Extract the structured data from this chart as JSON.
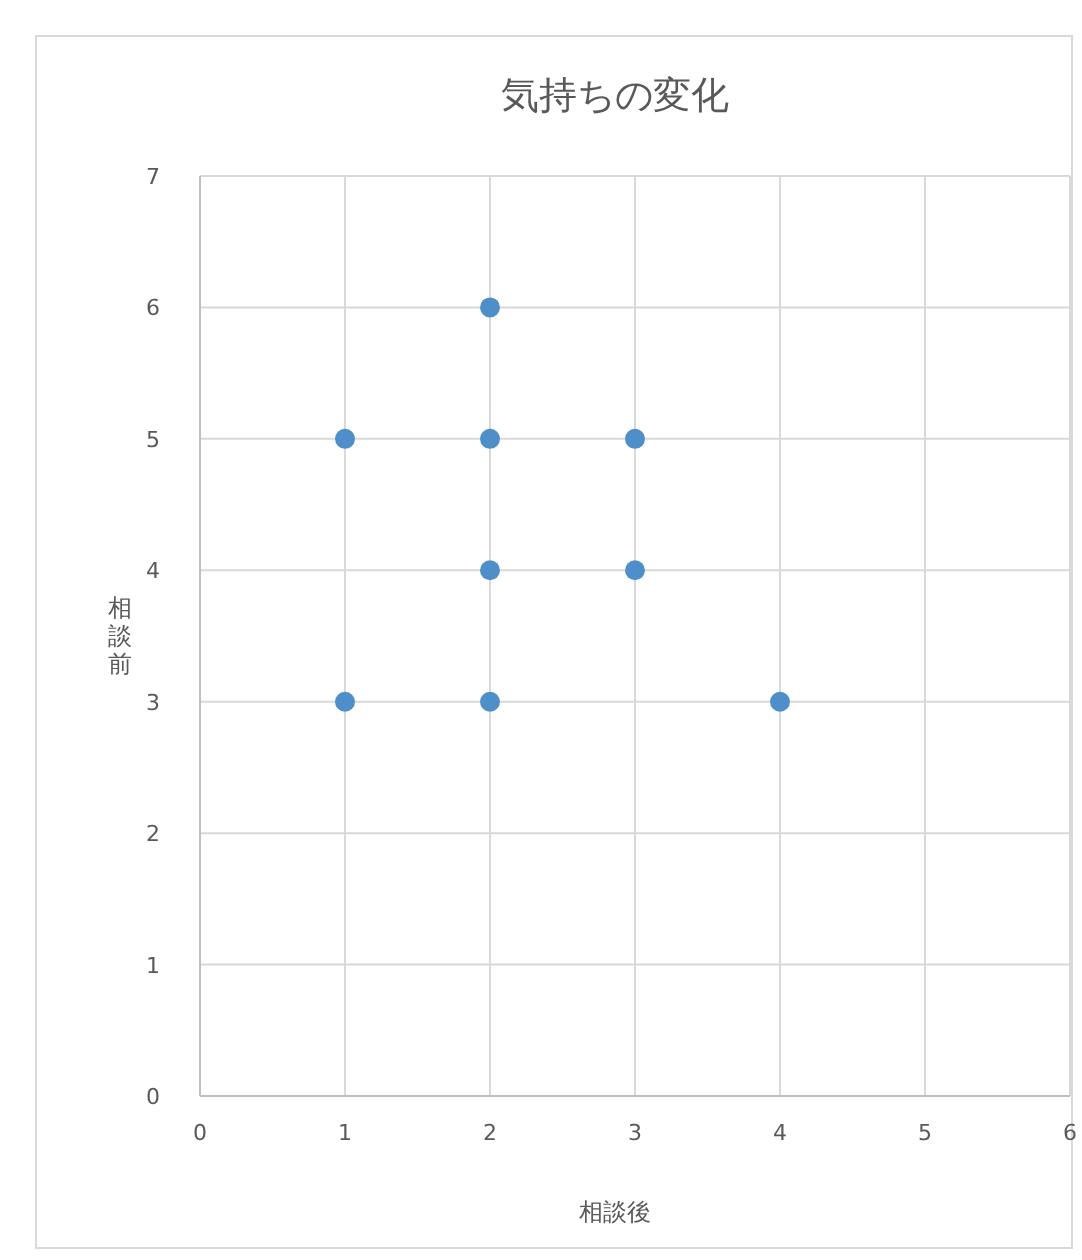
{
  "chart_data": {
    "type": "scatter",
    "title": "気持ちの変化",
    "xlabel": "相談後",
    "ylabel": "相談前",
    "x": [
      1,
      1,
      2,
      2,
      2,
      2,
      3,
      3,
      4
    ],
    "values": [
      5,
      3,
      6,
      5,
      4,
      3,
      5,
      4,
      3
    ],
    "color": "#4f8fc9",
    "xlim": [
      0,
      6
    ],
    "ylim": [
      0,
      7
    ],
    "xticks": [
      0,
      1,
      2,
      3,
      4,
      5,
      6
    ],
    "yticks": [
      0,
      1,
      2,
      3,
      4,
      5,
      6,
      7
    ],
    "grid": true,
    "marker": "circle"
  }
}
